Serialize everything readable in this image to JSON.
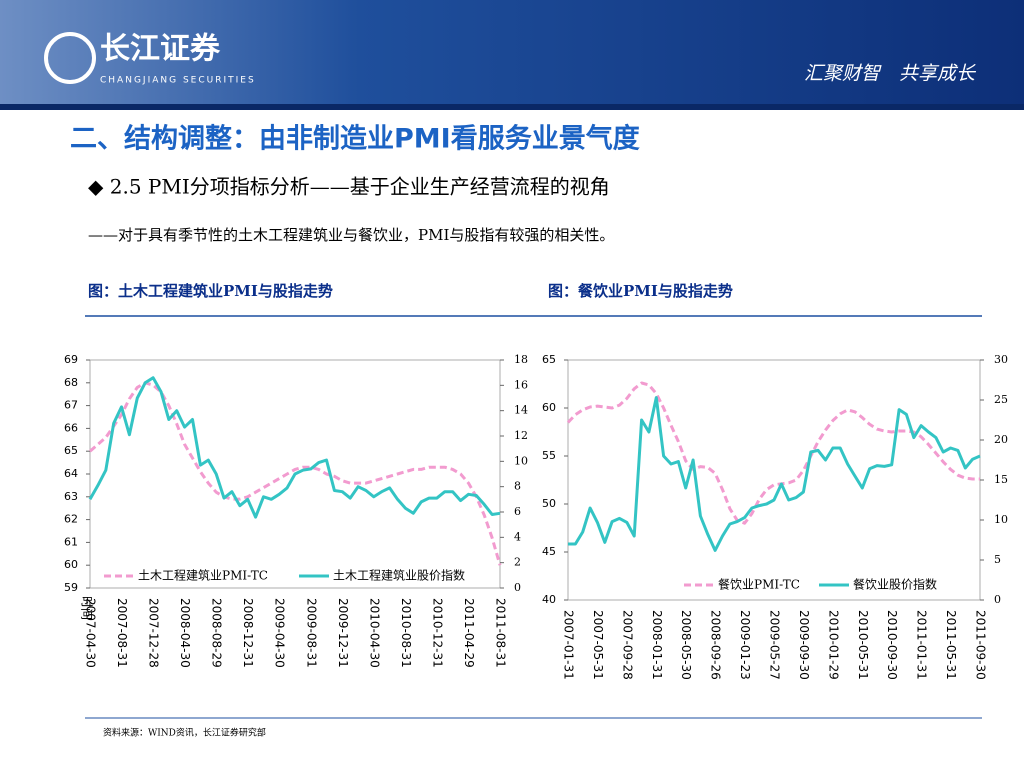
{
  "header": {
    "logo_cn": "长江证券",
    "logo_en": "CHANGJIANG SECURITIES",
    "slogan": "汇聚财智　共享成长"
  },
  "title": "二、结构调整：由非制造业PMI看服务业景气度",
  "subtitle": "◆ 2.5 PMI分项指标分析——基于企业生产经营流程的视角",
  "note": "——对于具有季节性的土木工程建筑业与餐饮业，PMI与股指有较强的相关性。",
  "source": "资料来源：WIND资讯，长江证券研究部",
  "chart_data": [
    {
      "type": "line",
      "title": "图：土木工程建筑业PMI与股指走势",
      "x_label": "时间",
      "categories": [
        "2007-04-30",
        null,
        null,
        null,
        "2007-08-31",
        null,
        null,
        null,
        "2007-12-28",
        null,
        null,
        null,
        "2008-04-30",
        null,
        null,
        null,
        "2008-08-29",
        null,
        null,
        null,
        "2008-12-31",
        null,
        null,
        null,
        "2009-04-30",
        null,
        null,
        null,
        "2009-08-31",
        null,
        null,
        null,
        "2009-12-31",
        null,
        null,
        null,
        "2010-04-30",
        null,
        null,
        null,
        "2010-08-31",
        null,
        null,
        null,
        "2010-12-31",
        null,
        null,
        null,
        "2011-04-29",
        null,
        null,
        null,
        "2011-08-31"
      ],
      "series": [
        {
          "name": "土木工程建筑业PMI-TC",
          "color": "#f29bcf",
          "dash": true,
          "values": [
            65.0,
            65.3,
            65.6,
            66.1,
            66.6,
            67.3,
            67.8,
            68.0,
            67.9,
            67.6,
            67.0,
            66.2,
            65.3,
            64.7,
            64.1,
            63.6,
            63.2,
            63.0,
            62.9,
            62.9,
            63.0,
            63.2,
            63.4,
            63.6,
            63.8,
            64.0,
            64.2,
            64.3,
            64.3,
            64.2,
            64.0,
            63.9,
            63.7,
            63.6,
            63.6,
            63.6,
            63.7,
            63.8,
            63.9,
            64.0,
            64.1,
            64.2,
            64.2,
            64.3,
            64.3,
            64.3,
            64.2,
            64.0,
            63.6,
            63.0,
            62.2,
            61.2,
            60.0
          ]
        },
        {
          "name": "土木工程建筑业股价指数",
          "color": "#33c4c4",
          "axis": "y2",
          "values": [
            7.0,
            8.1,
            9.3,
            13.0,
            14.3,
            12.1,
            15.0,
            16.2,
            16.6,
            15.5,
            13.3,
            14.0,
            12.7,
            13.3,
            9.7,
            10.1,
            9.0,
            7.1,
            7.6,
            6.5,
            7.0,
            5.6,
            7.2,
            7.0,
            7.4,
            7.9,
            9.0,
            9.3,
            9.4,
            9.9,
            10.1,
            7.7,
            7.6,
            7.1,
            8.0,
            7.7,
            7.2,
            7.6,
            7.9,
            7.0,
            6.3,
            5.9,
            6.8,
            7.1,
            7.1,
            7.6,
            7.6,
            6.9,
            7.4,
            7.3,
            6.6,
            5.8,
            5.9
          ]
        }
      ],
      "ylim": [
        59,
        69
      ],
      "yticks": [
        59,
        60,
        61,
        62,
        63,
        64,
        65,
        66,
        67,
        68,
        69
      ],
      "y2lim": [
        0,
        18
      ],
      "y2ticks": [
        0,
        2,
        4,
        6,
        8,
        10,
        12,
        14,
        16,
        18
      ],
      "legend": "lower center"
    },
    {
      "type": "line",
      "title": "图：餐饮业PMI与股指走势",
      "categories": [
        "2007-01-31",
        null,
        null,
        null,
        "2007-05-31",
        null,
        null,
        null,
        "2007-09-28",
        null,
        null,
        null,
        "2008-01-31",
        null,
        null,
        null,
        "2008-05-30",
        null,
        null,
        null,
        "2008-09-26",
        null,
        null,
        null,
        "2009-01-23",
        null,
        null,
        null,
        "2009-05-27",
        null,
        null,
        null,
        "2009-09-30",
        null,
        null,
        null,
        "2010-01-29",
        null,
        null,
        null,
        "2010-05-31",
        null,
        null,
        null,
        "2010-09-30",
        null,
        null,
        null,
        "2011-01-31",
        null,
        null,
        null,
        "2011-05-31",
        null,
        null,
        null,
        "2011-09-30"
      ],
      "series": [
        {
          "name": "餐饮业PMI-TC",
          "color": "#f29bcf",
          "dash": true,
          "values": [
            58.5,
            59.3,
            59.8,
            60.1,
            60.2,
            60.1,
            60.0,
            60.3,
            61.0,
            62.0,
            62.6,
            62.4,
            61.5,
            60.0,
            58.2,
            56.5,
            54.5,
            53.6,
            53.9,
            53.8,
            53.2,
            51.5,
            49.5,
            48.3,
            48.0,
            49.0,
            50.5,
            51.5,
            52.0,
            52.1,
            52.2,
            52.5,
            53.5,
            55.0,
            56.5,
            57.7,
            58.7,
            59.4,
            59.8,
            59.6,
            59.0,
            58.3,
            57.8,
            57.6,
            57.5,
            57.6,
            57.6,
            57.5,
            57.0,
            56.2,
            55.3,
            54.4,
            53.6,
            53.0,
            52.7,
            52.6,
            52.6
          ]
        },
        {
          "name": "餐饮业股价指数",
          "color": "#33c4c4",
          "axis": "y2",
          "values": [
            7,
            7,
            8.5,
            11.5,
            9.7,
            7.2,
            9.8,
            10.2,
            9.7,
            8,
            22.5,
            21,
            25.3,
            18,
            17,
            17.3,
            14,
            17.5,
            10.5,
            8.2,
            6.2,
            8,
            9.5,
            9.8,
            10.3,
            11.5,
            11.8,
            12,
            12.5,
            14.5,
            12.5,
            12.8,
            13.5,
            18.5,
            18.7,
            17.5,
            19,
            19,
            17,
            15.5,
            14,
            16.4,
            16.8,
            16.7,
            16.9,
            23.8,
            23.2,
            20.3,
            21.8,
            21,
            20.3,
            18.5,
            19,
            18.7,
            16.5,
            17.6,
            18
          ]
        }
      ],
      "ylim": [
        40,
        65
      ],
      "yticks": [
        40,
        45,
        50,
        55,
        60,
        65
      ],
      "y2lim": [
        0,
        30
      ],
      "y2ticks": [
        0,
        5,
        10,
        15,
        20,
        25,
        30
      ],
      "legend": "lower right"
    }
  ]
}
